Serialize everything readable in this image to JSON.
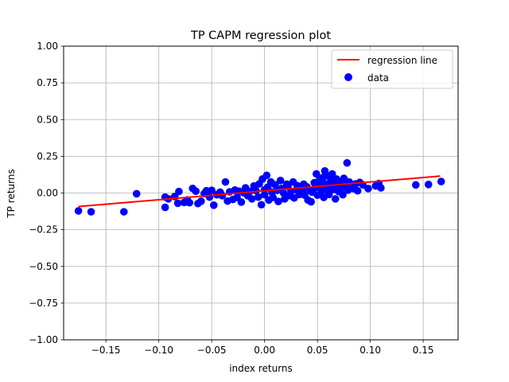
{
  "chart_data": {
    "type": "scatter",
    "title": "TP CAPM regression plot",
    "xlabel": "index returns",
    "ylabel": "TP returns",
    "xlim": [
      -0.19,
      0.183
    ],
    "ylim": [
      -1.0,
      1.0
    ],
    "xticks": [
      -0.15,
      -0.1,
      -0.05,
      0.0,
      0.05,
      0.1,
      0.15
    ],
    "xtick_labels": [
      "−0.15",
      "−0.10",
      "−0.05",
      "0.00",
      "0.05",
      "0.10",
      "0.15"
    ],
    "yticks": [
      1.0,
      0.75,
      0.5,
      0.25,
      0.0,
      -0.25,
      -0.5,
      -0.75,
      -1.0
    ],
    "ytick_labels": [
      "1.00",
      "0.75",
      "0.50",
      "0.25",
      "0.00",
      "−0.25",
      "−0.50",
      "−0.75",
      "−1.00"
    ],
    "grid": true,
    "legend_position": "top-right",
    "series": [
      {
        "name": "regression line",
        "kind": "line",
        "color": "#ff0000",
        "x": [
          -0.176,
          0.166
        ],
        "y": [
          -0.092,
          0.115
        ]
      },
      {
        "name": "data",
        "kind": "scatter",
        "color": "#0000ff",
        "points": [
          [
            -0.176,
            -0.122
          ],
          [
            -0.164,
            -0.128
          ],
          [
            -0.133,
            -0.128
          ],
          [
            -0.121,
            -0.005
          ],
          [
            -0.094,
            -0.028
          ],
          [
            -0.094,
            -0.098
          ],
          [
            -0.091,
            -0.04
          ],
          [
            -0.085,
            -0.024
          ],
          [
            -0.082,
            -0.07
          ],
          [
            -0.081,
            0.01
          ],
          [
            -0.076,
            -0.064
          ],
          [
            -0.073,
            -0.048
          ],
          [
            -0.071,
            -0.066
          ],
          [
            -0.068,
            0.031
          ],
          [
            -0.065,
            0.012
          ],
          [
            -0.063,
            -0.072
          ],
          [
            -0.06,
            -0.056
          ],
          [
            -0.057,
            -0.004
          ],
          [
            -0.055,
            0.015
          ],
          [
            -0.052,
            -0.028
          ],
          [
            -0.05,
            0.018
          ],
          [
            -0.048,
            -0.083
          ],
          [
            -0.045,
            -0.012
          ],
          [
            -0.042,
            0.006
          ],
          [
            -0.04,
            -0.018
          ],
          [
            -0.037,
            0.075
          ],
          [
            -0.035,
            -0.055
          ],
          [
            -0.033,
            0.008
          ],
          [
            -0.03,
            -0.044
          ],
          [
            -0.028,
            0.02
          ],
          [
            -0.026,
            -0.03
          ],
          [
            -0.024,
            0.012
          ],
          [
            -0.022,
            -0.062
          ],
          [
            -0.02,
            0.002
          ],
          [
            -0.018,
            0.035
          ],
          [
            -0.016,
            -0.018
          ],
          [
            -0.014,
            0.01
          ],
          [
            -0.012,
            -0.04
          ],
          [
            -0.01,
            0.048
          ],
          [
            -0.008,
            0.015
          ],
          [
            -0.006,
            -0.028
          ],
          [
            -0.005,
            0.062
          ],
          [
            -0.003,
            -0.08
          ],
          [
            -0.002,
            0.095
          ],
          [
            0.0,
            0.022
          ],
          [
            0.0,
            -0.012
          ],
          [
            0.002,
            0.12
          ],
          [
            0.003,
            0.04
          ],
          [
            0.004,
            -0.048
          ],
          [
            0.006,
            0.075
          ],
          [
            0.007,
            0.005
          ],
          [
            0.008,
            -0.03
          ],
          [
            0.01,
            0.055
          ],
          [
            0.012,
            0.018
          ],
          [
            0.013,
            -0.058
          ],
          [
            0.015,
            0.085
          ],
          [
            0.016,
            0.03
          ],
          [
            0.018,
            0.0
          ],
          [
            0.019,
            -0.04
          ],
          [
            0.021,
            0.06
          ],
          [
            0.022,
            0.045
          ],
          [
            0.024,
            -0.018
          ],
          [
            0.025,
            0.012
          ],
          [
            0.027,
            0.075
          ],
          [
            0.028,
            -0.034
          ],
          [
            0.03,
            0.02
          ],
          [
            0.031,
            0.05
          ],
          [
            0.033,
            -0.01
          ],
          [
            0.034,
            0.028
          ],
          [
            0.036,
            0.008
          ],
          [
            0.037,
            0.06
          ],
          [
            0.038,
            -0.015
          ],
          [
            0.04,
            0.042
          ],
          [
            0.041,
            -0.048
          ],
          [
            0.043,
            0.02
          ],
          [
            0.044,
            -0.06
          ],
          [
            0.045,
            0.005
          ],
          [
            0.047,
            0.07
          ],
          [
            0.048,
            0.035
          ],
          [
            0.049,
            0.13
          ],
          [
            0.05,
            -0.015
          ],
          [
            0.052,
            0.09
          ],
          [
            0.053,
            0.048
          ],
          [
            0.054,
            0.01
          ],
          [
            0.055,
            0.105
          ],
          [
            0.056,
            -0.03
          ],
          [
            0.057,
            0.15
          ],
          [
            0.058,
            0.062
          ],
          [
            0.059,
            0.02
          ],
          [
            0.06,
            0.115
          ],
          [
            0.061,
            -0.01
          ],
          [
            0.062,
            0.04
          ],
          [
            0.063,
            0.085
          ],
          [
            0.064,
            0.13
          ],
          [
            0.065,
            0.025
          ],
          [
            0.066,
            0.06
          ],
          [
            0.067,
            -0.04
          ],
          [
            0.068,
            0.095
          ],
          [
            0.069,
            0.045
          ],
          [
            0.07,
            0.01
          ],
          [
            0.071,
            0.08
          ],
          [
            0.072,
            0.03
          ],
          [
            0.073,
            0.058
          ],
          [
            0.074,
            -0.012
          ],
          [
            0.075,
            0.1
          ],
          [
            0.076,
            0.04
          ],
          [
            0.077,
            0.068
          ],
          [
            0.078,
            0.205
          ],
          [
            0.079,
            0.02
          ],
          [
            0.08,
            0.075
          ],
          [
            0.082,
            0.05
          ],
          [
            0.084,
            0.03
          ],
          [
            0.086,
            0.062
          ],
          [
            0.088,
            0.015
          ],
          [
            0.09,
            0.072
          ],
          [
            0.093,
            0.055
          ],
          [
            0.098,
            0.03
          ],
          [
            0.105,
            0.048
          ],
          [
            0.108,
            0.065
          ],
          [
            0.11,
            0.035
          ],
          [
            0.143,
            0.055
          ],
          [
            0.155,
            0.058
          ],
          [
            0.167,
            0.078
          ]
        ]
      }
    ]
  }
}
